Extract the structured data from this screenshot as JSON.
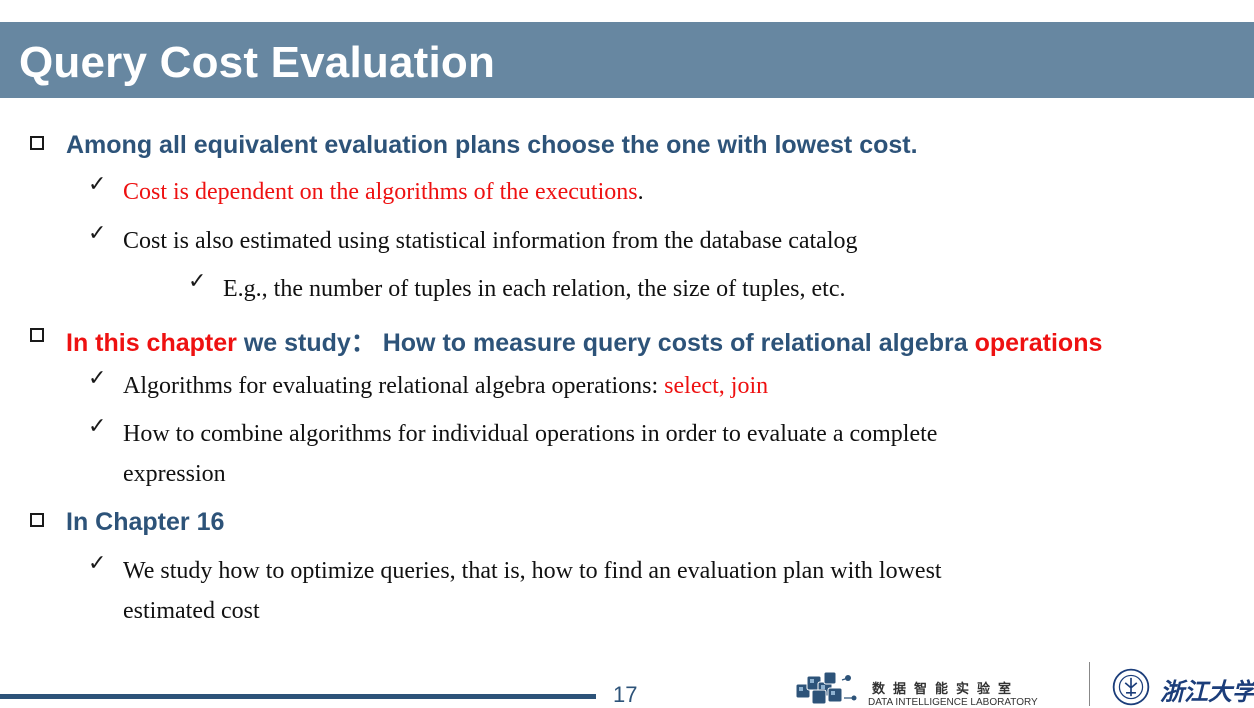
{
  "slide": {
    "title": "Query Cost Evaluation",
    "page_number": "17"
  },
  "bullets": [
    {
      "text": "Among all equivalent evaluation plans choose the one with lowest cost.",
      "subs": [
        {
          "text_red": "Cost is dependent on the algorithms of the executions",
          "text_tail": "."
        },
        {
          "text_red": "Cost is also estimated using statistical information from the database catalog"
        },
        {
          "text": "E.g., the number of tuples in each relation, the size of tuples, etc."
        }
      ]
    },
    {
      "part1_red": "In this chapter",
      "part2": " we study： How to measure query costs of relational algebra ",
      "part3_red": "operations",
      "subs": [
        {
          "text": "Algorithms for evaluating relational algebra operations: ",
          "text_red": "select, join"
        },
        {
          "line1": "How to combine algorithms for individual operations in order to evaluate a complete",
          "line2": "expression"
        }
      ]
    },
    {
      "text": "In Chapter 16",
      "subs": [
        {
          "line1": "We study how to optimize queries, that is, how to find an evaluation plan with lowest",
          "line2": "estimated cost"
        }
      ]
    }
  ],
  "footer": {
    "lab_name_cn": "数据智能实验室",
    "lab_name_en": "DATA INTELLIGENCE LABORATORY",
    "university_cn": "浙江大学"
  },
  "icons": {
    "bullet": "hollow-square",
    "sub_bullet": "check-mark"
  },
  "colors": {
    "title_bar": "#6787a1",
    "heading": "#2d5379",
    "accent": "#ee1111"
  }
}
